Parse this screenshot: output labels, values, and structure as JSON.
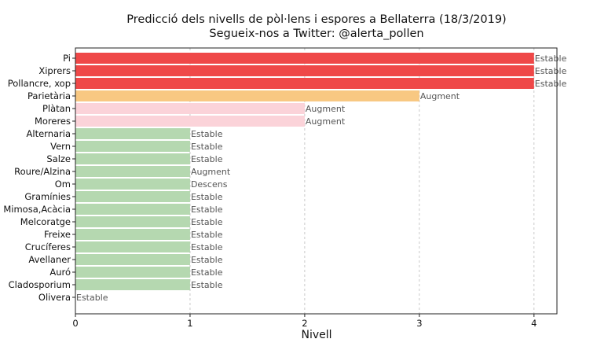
{
  "chart_data": {
    "type": "bar",
    "orientation": "horizontal",
    "title": "Predicció dels nivells de pòl·lens i espores a Bellaterra (18/3/2019)",
    "subtitle": "Segueix-nos a Twitter: @alerta_pollen",
    "xlabel": "Nivell",
    "ylabel": "",
    "xlim": [
      0,
      4.2
    ],
    "xticks": [
      "0",
      "1",
      "2",
      "3",
      "4"
    ],
    "grid": "vertical dashed",
    "categories": [
      "Pi",
      "Xiprers",
      "Pollancre, xop",
      "Parietària",
      "Plàtan",
      "Moreres",
      "Alternaria",
      "Vern",
      "Salze",
      "Roure/Alzina",
      "Om",
      "Gramínies",
      "Mimosa,Acàcia",
      "Melcoratge",
      "Freixe",
      "Crucíferes",
      "Avellaner",
      "Auró",
      "Cladosporium",
      "Olivera"
    ],
    "values": [
      4,
      4,
      4,
      3,
      2,
      2,
      1,
      1,
      1,
      1,
      1,
      1,
      1,
      1,
      1,
      1,
      1,
      1,
      1,
      0
    ],
    "trends": [
      "Estable",
      "Estable",
      "Estable",
      "Augment",
      "Augment",
      "Augment",
      "Estable",
      "Estable",
      "Estable",
      "Augment",
      "Descens",
      "Estable",
      "Estable",
      "Estable",
      "Estable",
      "Estable",
      "Estable",
      "Estable",
      "Estable",
      "Estable"
    ],
    "level_colors": {
      "1": "#b5d8b0",
      "2": "#fbd3d9",
      "3": "#f8c882",
      "4": "#ef4848"
    }
  }
}
